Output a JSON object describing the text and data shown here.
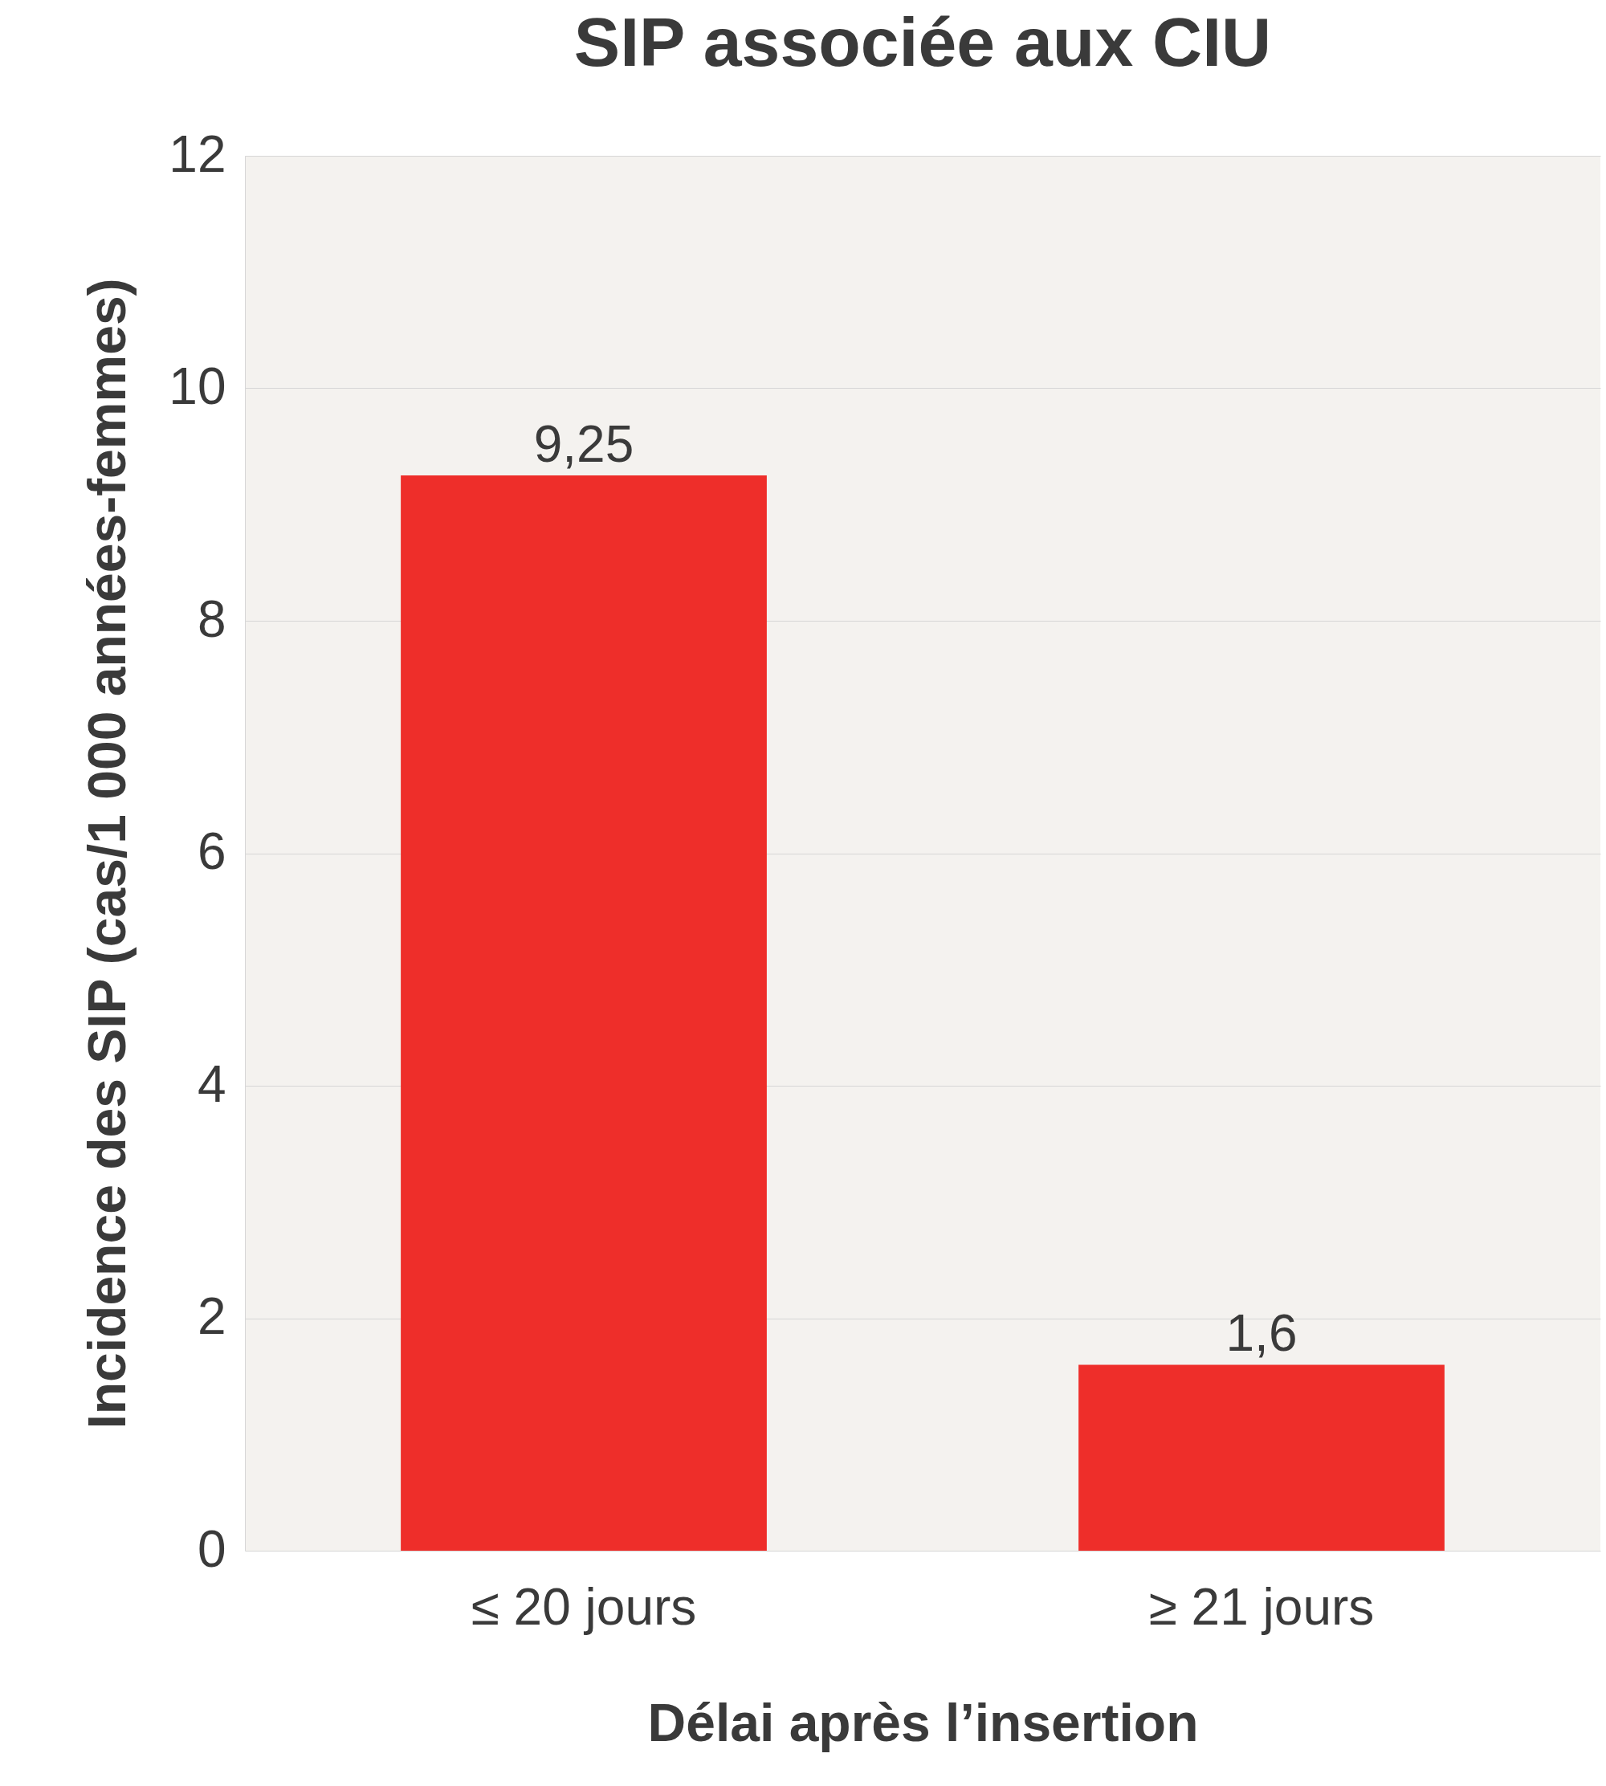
{
  "chart_data": {
    "type": "bar",
    "title": "SIP associée aux CIU",
    "xlabel": "Délai après l’insertion",
    "ylabel": "Incidence des SIP (cas/1 000 années-femmes)",
    "categories": [
      "≤ 20 jours",
      "≥ 21 jours"
    ],
    "values": [
      9.25,
      1.6
    ],
    "value_labels": [
      "9,25",
      "1,6"
    ],
    "color": "#ee2e2a",
    "ylim": [
      0,
      12
    ],
    "yticks": [
      0,
      2,
      4,
      6,
      8,
      10,
      12
    ],
    "grid": "y"
  }
}
